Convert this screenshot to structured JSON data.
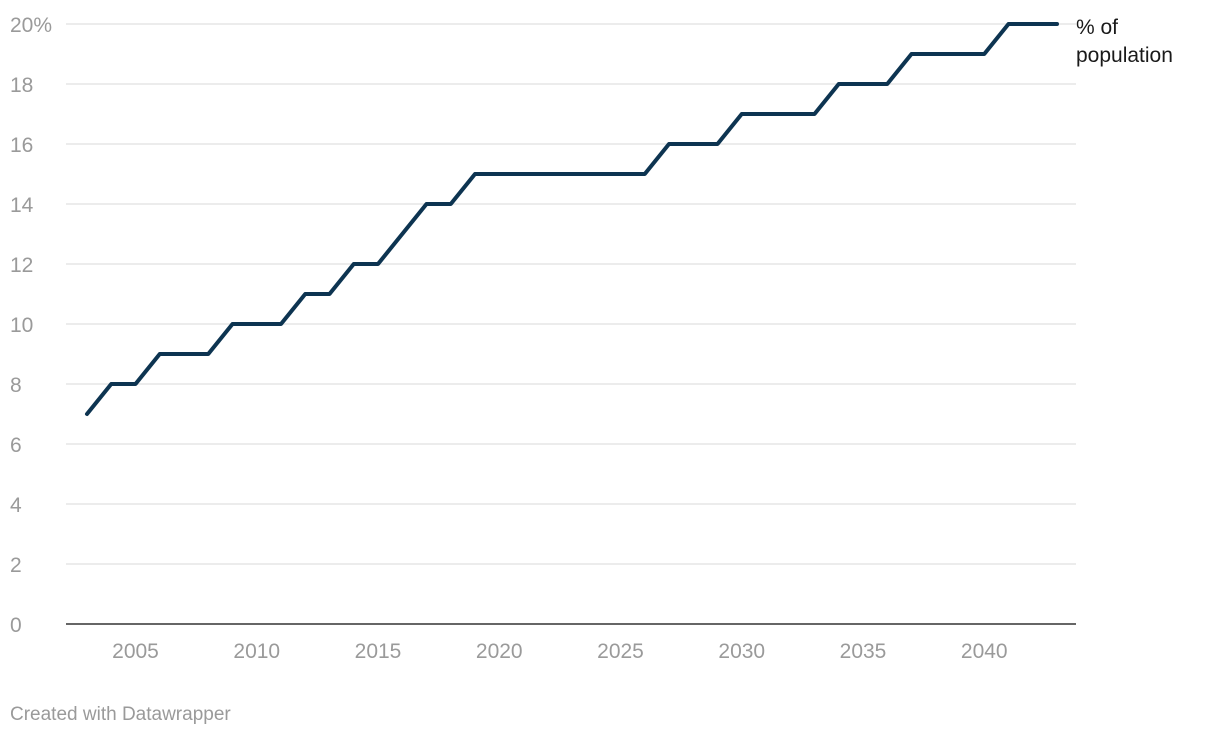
{
  "chart_data": {
    "type": "line",
    "title": "",
    "xlabel": "",
    "ylabel": "",
    "xlim": [
      2003,
      2043
    ],
    "ylim": [
      0,
      20
    ],
    "y_ticks": [
      0,
      2,
      4,
      6,
      8,
      10,
      12,
      14,
      16,
      18,
      20
    ],
    "y_tick_labels": [
      "0",
      "2",
      "4",
      "6",
      "8",
      "10",
      "12",
      "14",
      "16",
      "18",
      "20%"
    ],
    "x_ticks": [
      2005,
      2010,
      2015,
      2020,
      2025,
      2030,
      2035,
      2040
    ],
    "x_tick_labels": [
      "2005",
      "2010",
      "2015",
      "2020",
      "2025",
      "2030",
      "2035",
      "2040"
    ],
    "grid": true,
    "series": [
      {
        "label_lines": [
          "% of",
          "population"
        ],
        "color": "#0d3451",
        "x": [
          2003,
          2004,
          2005,
          2006,
          2007,
          2008,
          2009,
          2010,
          2011,
          2012,
          2013,
          2014,
          2015,
          2016,
          2017,
          2018,
          2019,
          2020,
          2021,
          2022,
          2023,
          2024,
          2025,
          2026,
          2027,
          2028,
          2029,
          2030,
          2031,
          2032,
          2033,
          2034,
          2035,
          2036,
          2037,
          2038,
          2039,
          2040,
          2041,
          2042,
          2043
        ],
        "values": [
          7,
          8,
          8,
          9,
          9,
          9,
          10,
          10,
          10,
          11,
          11,
          12,
          12,
          13,
          14,
          14,
          15,
          15,
          15,
          15,
          15,
          15,
          15,
          15,
          16,
          16,
          16,
          17,
          17,
          17,
          17,
          18,
          18,
          18,
          19,
          19,
          19,
          19,
          20,
          20,
          20
        ]
      }
    ]
  },
  "footer": {
    "credit": "Created with Datawrapper"
  }
}
